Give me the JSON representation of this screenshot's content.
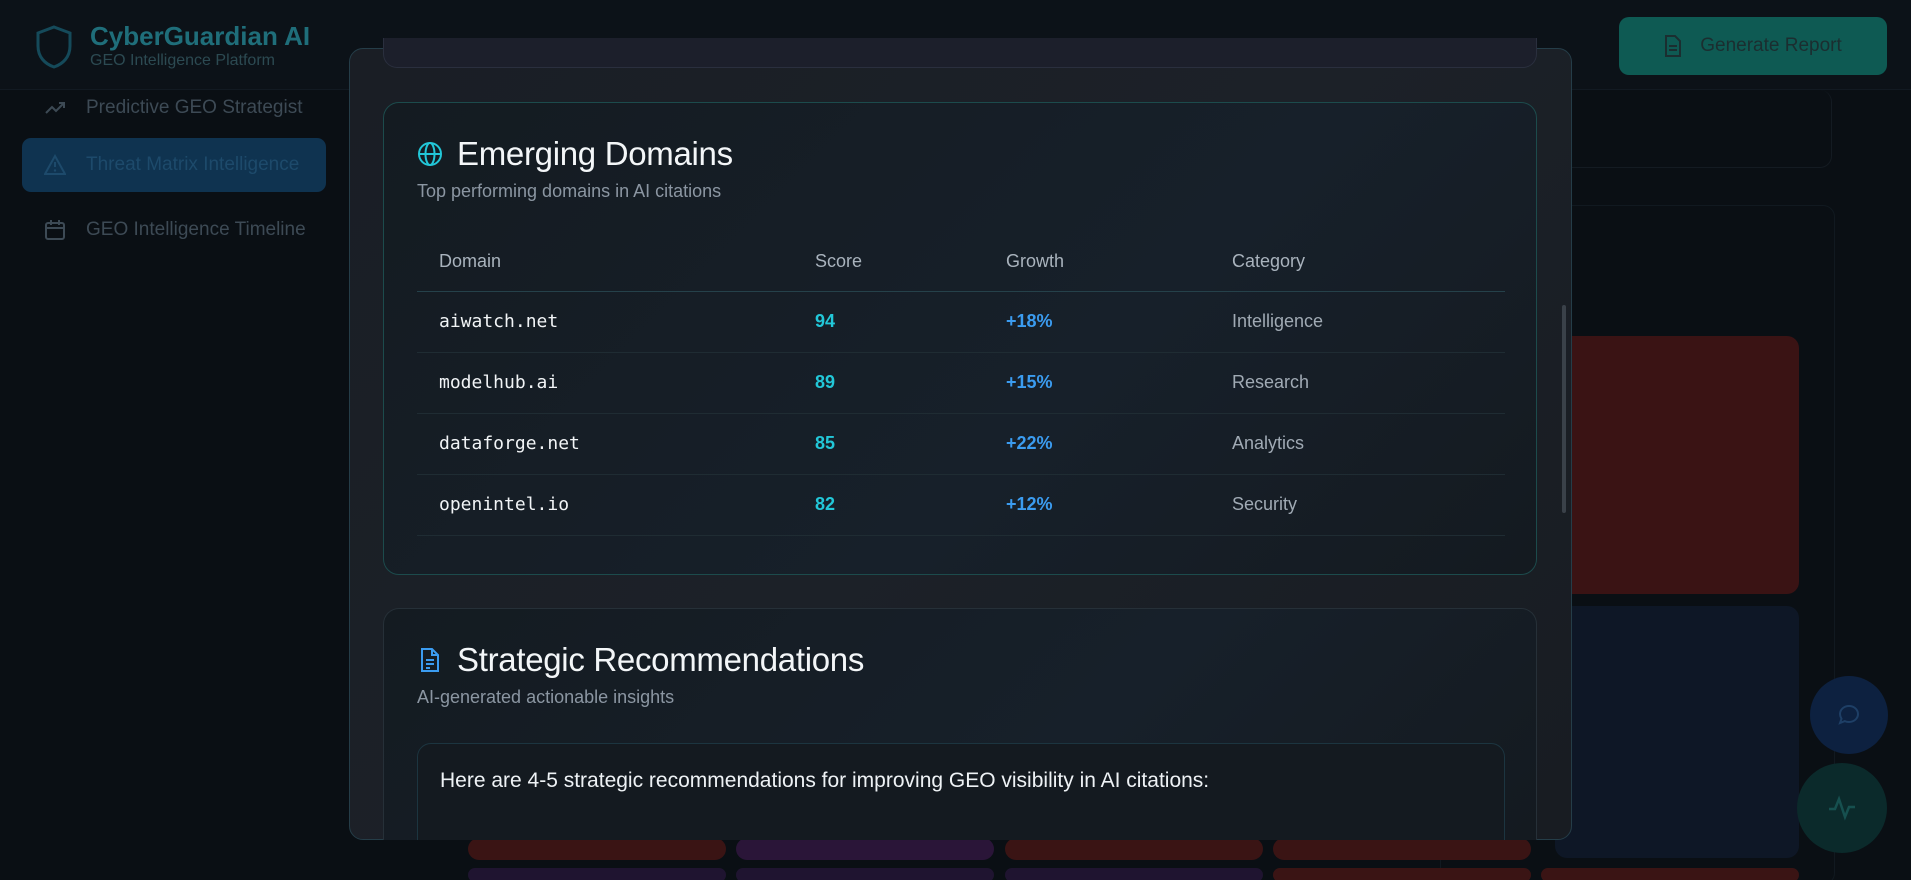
{
  "app": {
    "brand_title": "CyberGuardian AI",
    "brand_subtitle": "GEO Intelligence Platform",
    "generate_report_label": "Generate Report",
    "sidebar": {
      "items": [
        {
          "label": "Predictive GEO Strategist",
          "icon": "trend-icon",
          "active": false
        },
        {
          "label": "Threat Matrix Intelligence",
          "icon": "alert-triangle-icon",
          "active": true
        },
        {
          "label": "GEO Intelligence Timeline",
          "icon": "calendar-icon",
          "active": false
        }
      ]
    }
  },
  "modal": {
    "emerging_domains": {
      "title": "Emerging Domains",
      "subtitle": "Top performing domains in AI citations",
      "icon": "globe-icon",
      "columns": [
        "Domain",
        "Score",
        "Growth",
        "Category"
      ],
      "rows": [
        {
          "domain": "aiwatch.net",
          "score": "94",
          "growth": "+18%",
          "category": "Intelligence"
        },
        {
          "domain": "modelhub.ai",
          "score": "89",
          "growth": "+15%",
          "category": "Research"
        },
        {
          "domain": "dataforge.net",
          "score": "85",
          "growth": "+22%",
          "category": "Analytics"
        },
        {
          "domain": "openintel.io",
          "score": "82",
          "growth": "+12%",
          "category": "Security"
        }
      ]
    },
    "strategic_recommendations": {
      "title": "Strategic Recommendations",
      "subtitle": "AI-generated actionable insights",
      "icon": "document-icon",
      "intro": "Here are 4-5 strategic recommendations for improving GEO visibility in AI citations:"
    }
  },
  "colors": {
    "accent_teal": "#22c7d8",
    "accent_blue": "#3b9cf0",
    "modal_border": "#253d48"
  }
}
